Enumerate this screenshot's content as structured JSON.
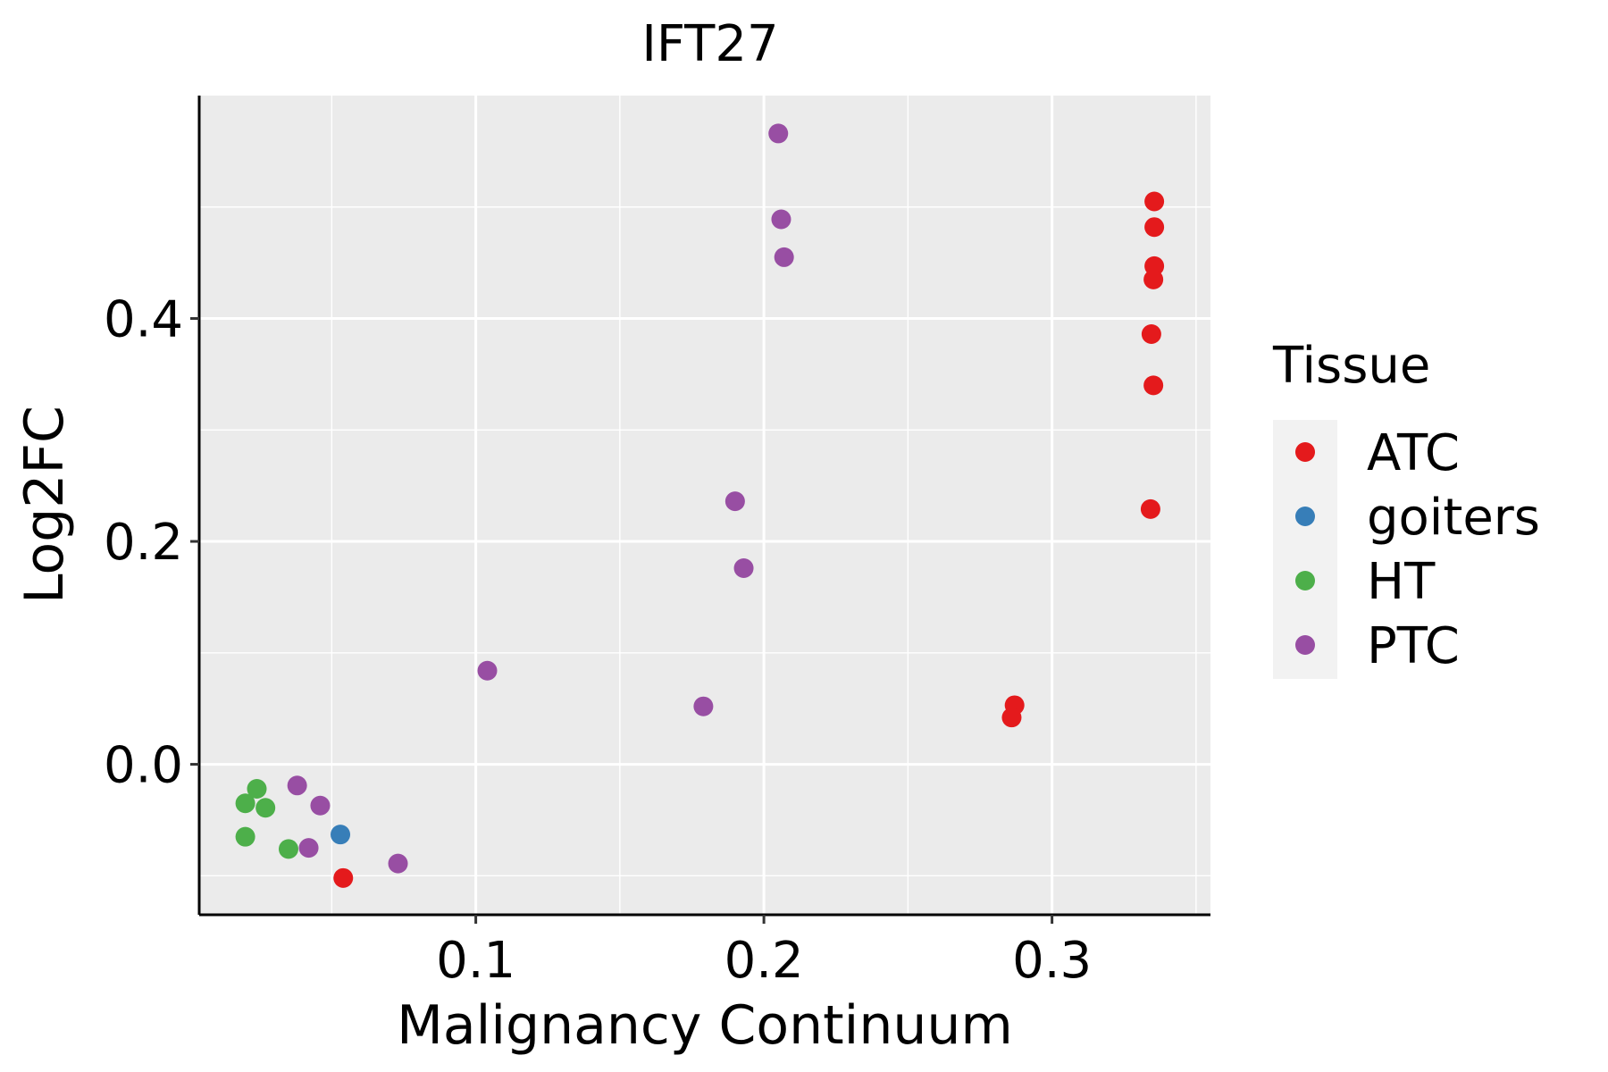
{
  "chart_data": {
    "type": "scatter",
    "title": "IFT27",
    "xlabel": "Malignancy Continuum",
    "ylabel": "Log2FC",
    "xlim": [
      0.004,
      0.355
    ],
    "ylim": [
      -0.135,
      0.6
    ],
    "x_ticks": [
      0.1,
      0.2,
      0.3
    ],
    "x_tick_labels": [
      "0.1",
      "0.2",
      "0.3"
    ],
    "y_ticks": [
      0.0,
      0.2,
      0.4
    ],
    "y_tick_labels": [
      "0.0",
      "0.2",
      "0.4"
    ],
    "grid": true,
    "legend": {
      "title": "Tissue",
      "position": "right",
      "entries": [
        {
          "name": "ATC",
          "color": "#E41A1C"
        },
        {
          "name": "goiters",
          "color": "#377EB8"
        },
        {
          "name": "HT",
          "color": "#4DAF4A"
        },
        {
          "name": "PTC",
          "color": "#984EA3"
        }
      ]
    },
    "series": [
      {
        "name": "ATC",
        "color": "#E41A1C",
        "points": [
          {
            "x": 0.054,
            "y": -0.102
          },
          {
            "x": 0.287,
            "y": 0.053
          },
          {
            "x": 0.286,
            "y": 0.042
          },
          {
            "x": 0.3355,
            "y": 0.505
          },
          {
            "x": 0.3355,
            "y": 0.482
          },
          {
            "x": 0.3355,
            "y": 0.447
          },
          {
            "x": 0.3352,
            "y": 0.435
          },
          {
            "x": 0.3345,
            "y": 0.386
          },
          {
            "x": 0.3352,
            "y": 0.34
          },
          {
            "x": 0.3342,
            "y": 0.229
          }
        ]
      },
      {
        "name": "goiters",
        "color": "#377EB8",
        "points": [
          {
            "x": 0.053,
            "y": -0.063
          }
        ]
      },
      {
        "name": "HT",
        "color": "#4DAF4A",
        "points": [
          {
            "x": 0.02,
            "y": -0.035
          },
          {
            "x": 0.024,
            "y": -0.022
          },
          {
            "x": 0.027,
            "y": -0.039
          },
          {
            "x": 0.02,
            "y": -0.065
          },
          {
            "x": 0.035,
            "y": -0.076
          }
        ]
      },
      {
        "name": "PTC",
        "color": "#984EA3",
        "points": [
          {
            "x": 0.038,
            "y": -0.019
          },
          {
            "x": 0.046,
            "y": -0.037
          },
          {
            "x": 0.042,
            "y": -0.075
          },
          {
            "x": 0.073,
            "y": -0.089
          },
          {
            "x": 0.104,
            "y": 0.084
          },
          {
            "x": 0.179,
            "y": 0.052
          },
          {
            "x": 0.19,
            "y": 0.236
          },
          {
            "x": 0.193,
            "y": 0.176
          },
          {
            "x": 0.205,
            "y": 0.566
          },
          {
            "x": 0.206,
            "y": 0.489
          },
          {
            "x": 0.207,
            "y": 0.455
          }
        ]
      }
    ]
  }
}
